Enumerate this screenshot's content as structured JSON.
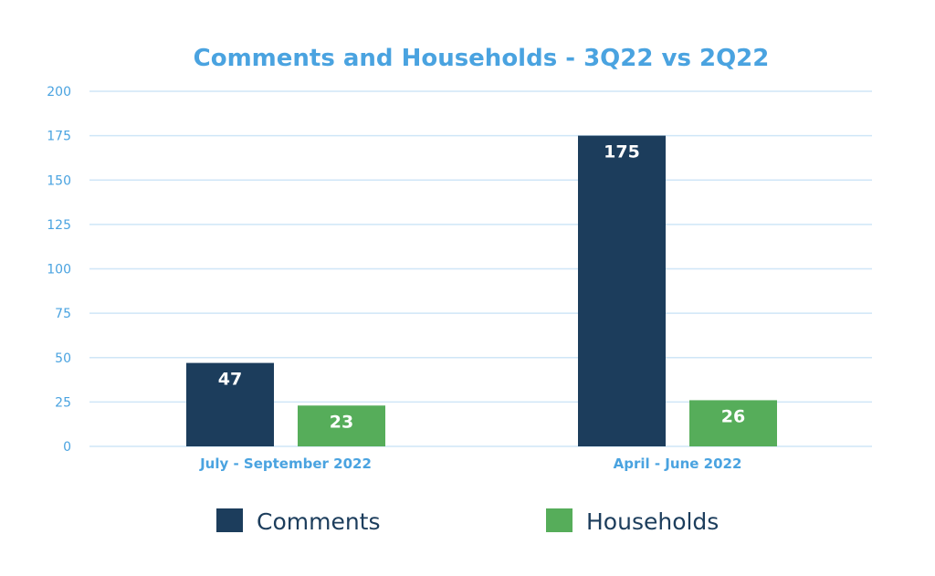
{
  "chart_data": {
    "type": "bar",
    "title": "Comments and Households - 3Q22 vs 2Q22",
    "categories": [
      "July - September 2022",
      "April - June 2022"
    ],
    "series": [
      {
        "name": "Comments",
        "values": [
          47,
          175
        ],
        "color": "#1c3d5c"
      },
      {
        "name": "Households",
        "values": [
          23,
          26
        ],
        "color": "#56ad5a"
      }
    ],
    "ylim": [
      0,
      200
    ],
    "yticks": [
      0,
      25,
      50,
      75,
      100,
      125,
      150,
      175,
      200
    ],
    "grid": true,
    "legend_position": "bottom",
    "data_labels": true,
    "title_color": "#4aa3e0",
    "axis_text_color": "#4aa3e0",
    "grid_color": "#cfe6f7"
  }
}
